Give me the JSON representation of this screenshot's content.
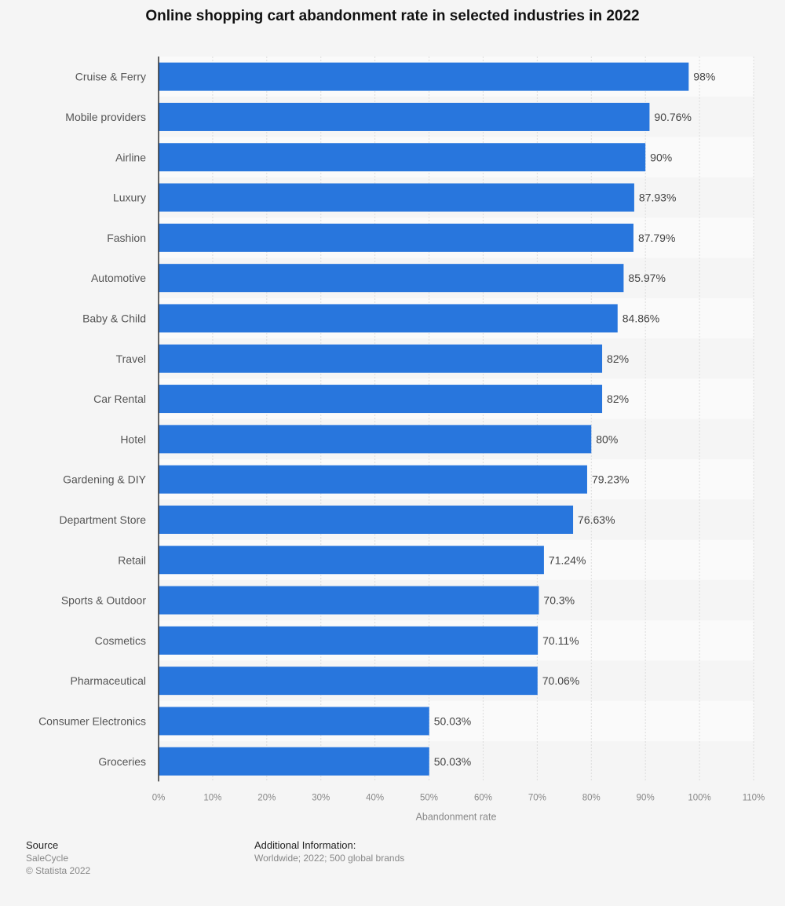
{
  "chart_data": {
    "type": "bar",
    "orientation": "horizontal",
    "title": "Online shopping cart abandonment rate in selected industries in 2022",
    "xlabel": "Abandonment rate",
    "ylabel": "",
    "xlim": [
      0,
      110
    ],
    "ticks": [
      "0%",
      "10%",
      "20%",
      "30%",
      "40%",
      "50%",
      "60%",
      "70%",
      "80%",
      "90%",
      "100%",
      "110%"
    ],
    "grid": true,
    "bar_color": "#2876dd",
    "categories": [
      "Cruise & Ferry",
      "Mobile providers",
      "Airline",
      "Luxury",
      "Fashion",
      "Automotive",
      "Baby & Child",
      "Travel",
      "Car Rental",
      "Hotel",
      "Gardening & DIY",
      "Department Store",
      "Retail",
      "Sports & Outdoor",
      "Cosmetics",
      "Pharmaceutical",
      "Consumer Electronics",
      "Groceries"
    ],
    "values": [
      98,
      90.76,
      90,
      87.93,
      87.79,
      85.97,
      84.86,
      82,
      82,
      80,
      79.23,
      76.63,
      71.24,
      70.3,
      70.11,
      70.06,
      50.03,
      50.03
    ],
    "labels": [
      "98%",
      "90.76%",
      "90%",
      "87.93%",
      "87.79%",
      "85.97%",
      "84.86%",
      "82%",
      "82%",
      "80%",
      "79.23%",
      "76.63%",
      "71.24%",
      "70.3%",
      "70.11%",
      "70.06%",
      "50.03%",
      "50.03%"
    ]
  },
  "footer": {
    "source_heading": "Source",
    "source": "SaleCycle",
    "copyright": "© Statista 2022",
    "info_heading": "Additional Information:",
    "info": "Worldwide; 2022; 500 global brands"
  }
}
